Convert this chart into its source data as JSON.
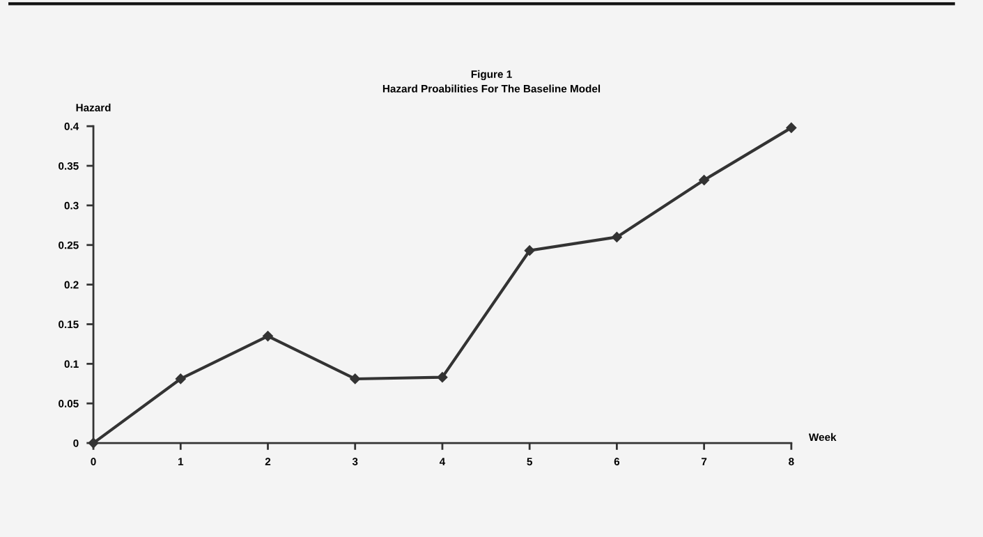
{
  "chart_data": {
    "type": "line",
    "title": "Figure 1",
    "subtitle": "Hazard Proabilities For The Baseline Model",
    "xlabel": "Week",
    "ylabel": "Hazard",
    "x": [
      0,
      1,
      2,
      3,
      4,
      5,
      6,
      7,
      8
    ],
    "series": [
      {
        "color": "#333333",
        "values": [
          0,
          0.081,
          0.135,
          0.081,
          0.083,
          0.243,
          0.26,
          0.332,
          0.398
        ]
      }
    ],
    "xlim": [
      0,
      8
    ],
    "xticks": [
      0,
      1,
      2,
      3,
      4,
      5,
      6,
      7,
      8
    ],
    "ylim": [
      0,
      0.4
    ],
    "yticks": [
      0,
      0.05,
      0.1,
      0.15,
      0.2,
      0.25,
      0.3,
      0.35,
      0.4
    ],
    "grid": false,
    "legend": false,
    "marker": "diamond",
    "line_style": "solid"
  }
}
